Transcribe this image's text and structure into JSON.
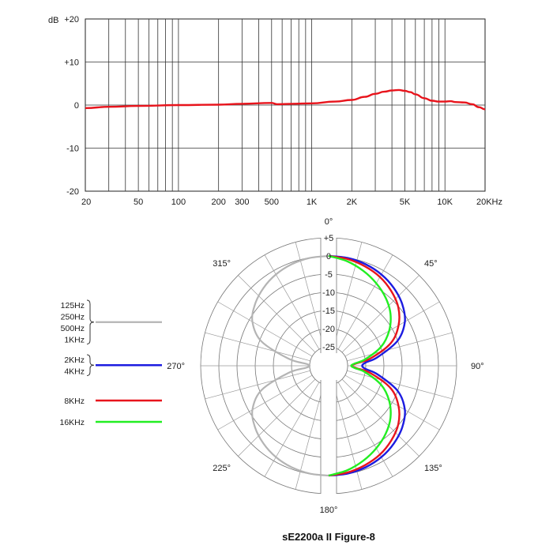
{
  "title": "sE2200a II Figure-8",
  "chart_data": [
    {
      "type": "line",
      "name": "frequency-response",
      "ylabel": "dB",
      "x_scale": "log",
      "xlim": [
        20,
        20000
      ],
      "ylim": [
        -20,
        20
      ],
      "x_ticks": [
        20,
        50,
        100,
        200,
        300,
        500,
        1000,
        2000,
        5000,
        10000,
        20000
      ],
      "x_tick_labels": [
        "20",
        "50",
        "100",
        "200",
        "300",
        "500",
        "1K",
        "2K",
        "5K",
        "10K",
        "20KHz"
      ],
      "y_ticks": [
        20,
        10,
        0,
        -10,
        -20
      ],
      "y_tick_labels": [
        "+20",
        "+10",
        "0",
        "-10",
        "-20"
      ],
      "grid": true,
      "series": [
        {
          "color": "#e8141c",
          "points": [
            [
              20,
              -0.7
            ],
            [
              30,
              -0.4
            ],
            [
              50,
              -0.2
            ],
            [
              100,
              0.0
            ],
            [
              200,
              0.1
            ],
            [
              300,
              0.3
            ],
            [
              500,
              0.5
            ],
            [
              550,
              0.2
            ],
            [
              700,
              0.3
            ],
            [
              1000,
              0.4
            ],
            [
              1500,
              0.8
            ],
            [
              2000,
              1.2
            ],
            [
              2500,
              1.9
            ],
            [
              3000,
              2.6
            ],
            [
              3500,
              3.1
            ],
            [
              4000,
              3.4
            ],
            [
              4500,
              3.5
            ],
            [
              5000,
              3.3
            ],
            [
              5500,
              3.0
            ],
            [
              6000,
              2.5
            ],
            [
              7000,
              1.6
            ],
            [
              8000,
              1.0
            ],
            [
              9000,
              0.8
            ],
            [
              10000,
              0.8
            ],
            [
              11000,
              0.9
            ],
            [
              12000,
              0.7
            ],
            [
              14000,
              0.6
            ],
            [
              16000,
              0.2
            ],
            [
              18000,
              -0.5
            ],
            [
              20000,
              -1.0
            ]
          ]
        }
      ]
    },
    {
      "type": "polar",
      "name": "polar-pattern",
      "r_ticks": [
        5,
        0,
        -5,
        -10,
        -15,
        -20,
        -25
      ],
      "r_tick_labels": [
        "+5",
        "0",
        "-5",
        "-10",
        "-15",
        "-20",
        "-25"
      ],
      "rlim": [
        -25,
        5
      ],
      "angle_labels": [
        "0°",
        "45°",
        "90°",
        "135°",
        "180°",
        "225°",
        "270°",
        "315°"
      ],
      "series": [
        {
          "label_lines": [
            "125Hz",
            "250Hz",
            "500Hz",
            "1KHz"
          ],
          "color": "#b4b4b4",
          "angles_deg": [
            0,
            10,
            20,
            30,
            40,
            50,
            60,
            70,
            80,
            85,
            90,
            95,
            100,
            110,
            120,
            130,
            140,
            150,
            160,
            170,
            180
          ],
          "db": [
            0,
            -0.1,
            -0.5,
            -1.2,
            -2.3,
            -3.8,
            -6.0,
            -10.5,
            -19.0,
            -24.0,
            -25.0,
            -24.0,
            -19.0,
            -10.5,
            -6.0,
            -3.8,
            -2.3,
            -1.2,
            -0.5,
            -0.1,
            0
          ]
        },
        {
          "label_lines": [
            "2KHz",
            "4KHz"
          ],
          "color": "#1c1ce0",
          "angles_deg": [
            0,
            10,
            20,
            30,
            40,
            50,
            60,
            70,
            80,
            85,
            90,
            95,
            100,
            110,
            120,
            130,
            140,
            150,
            160,
            170,
            180
          ],
          "db": [
            0,
            -0.1,
            -0.5,
            -1.2,
            -2.3,
            -3.8,
            -6.0,
            -10.0,
            -16.5,
            -20.0,
            -21.0,
            -20.0,
            -16.5,
            -10.0,
            -6.0,
            -3.8,
            -2.3,
            -1.2,
            -0.5,
            -0.1,
            0
          ]
        },
        {
          "label_lines": [
            "8KHz"
          ],
          "color": "#e8141c",
          "angles_deg": [
            0,
            10,
            20,
            30,
            40,
            50,
            60,
            70,
            80,
            85,
            90,
            95,
            100,
            110,
            120,
            130,
            140,
            150,
            160,
            170,
            180
          ],
          "db": [
            0,
            -0.4,
            -1.1,
            -2.0,
            -3.4,
            -5.2,
            -8.0,
            -12.0,
            -18.5,
            -22.5,
            -24.0,
            -22.5,
            -18.5,
            -12.0,
            -8.0,
            -5.2,
            -3.4,
            -2.0,
            -1.1,
            -0.4,
            0
          ]
        },
        {
          "label_lines": [
            "16KHz"
          ],
          "color": "#22ee22",
          "angles_deg": [
            0,
            10,
            20,
            30,
            40,
            50,
            60,
            70,
            80,
            85,
            90,
            95,
            100,
            110,
            120,
            130,
            140,
            150,
            160,
            170,
            180
          ],
          "db": [
            0,
            -1.0,
            -2.4,
            -4.0,
            -5.8,
            -8.0,
            -11.0,
            -14.8,
            -20.0,
            -23.0,
            -24.0,
            -23.0,
            -20.0,
            -14.8,
            -11.0,
            -8.0,
            -5.8,
            -4.0,
            -2.4,
            -1.0,
            0
          ]
        }
      ]
    }
  ]
}
